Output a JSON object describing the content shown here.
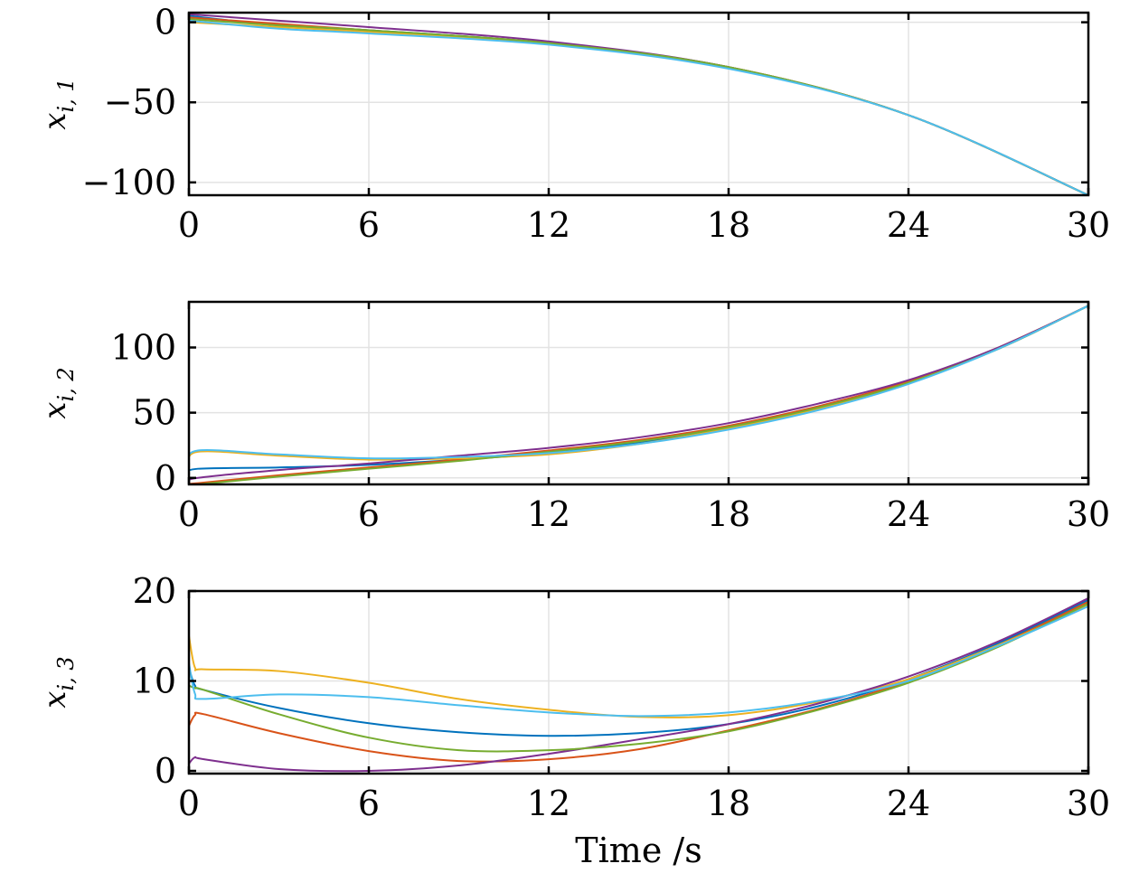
{
  "chart_data": [
    {
      "type": "line",
      "ylabel": "x_{i,1}",
      "ylabel_main": "x",
      "ylabel_sub": "i, 1",
      "xlabel": "",
      "xlim": [
        0,
        30
      ],
      "ylim": [
        -108,
        6
      ],
      "xticks": [
        "0",
        "6",
        "12",
        "18",
        "24",
        "30"
      ],
      "xtick_values": [
        0,
        6,
        12,
        18,
        24,
        30
      ],
      "yticks": [
        "0",
        "−50",
        "−100"
      ],
      "ytick_values": [
        0,
        -50,
        -100
      ],
      "grid": true,
      "series": [
        {
          "color": "#0072BD",
          "x": [
            0,
            3,
            6,
            12,
            18,
            24,
            30
          ],
          "y": [
            4,
            -2,
            -5,
            -13,
            -28,
            -58,
            -108
          ]
        },
        {
          "color": "#D95319",
          "x": [
            0,
            3,
            6,
            12,
            18,
            24,
            30
          ],
          "y": [
            3,
            -1,
            -5,
            -13,
            -28,
            -58,
            -108
          ]
        },
        {
          "color": "#EDB120",
          "x": [
            0,
            3,
            6,
            12,
            18,
            24,
            30
          ],
          "y": [
            0,
            -3,
            -6,
            -13,
            -28,
            -58,
            -108
          ]
        },
        {
          "color": "#7E2F8E",
          "x": [
            0,
            3,
            6,
            12,
            18,
            24,
            30
          ],
          "y": [
            5,
            1,
            -3,
            -12,
            -28,
            -58,
            -108
          ]
        },
        {
          "color": "#77AC30",
          "x": [
            0,
            3,
            6,
            12,
            18,
            24,
            30
          ],
          "y": [
            2,
            -2,
            -5,
            -13,
            -28,
            -58,
            -108
          ]
        },
        {
          "color": "#4DBEEE",
          "x": [
            0,
            3,
            6,
            12,
            18,
            24,
            30
          ],
          "y": [
            1,
            -4,
            -7,
            -14,
            -29,
            -58,
            -108
          ]
        }
      ]
    },
    {
      "type": "line",
      "ylabel": "x_{i,2}",
      "ylabel_main": "x",
      "ylabel_sub": "i, 2",
      "xlabel": "",
      "xlim": [
        0,
        30
      ],
      "ylim": [
        -5,
        135
      ],
      "xticks": [
        "0",
        "6",
        "12",
        "18",
        "24",
        "30"
      ],
      "xtick_values": [
        0,
        6,
        12,
        18,
        24,
        30
      ],
      "yticks": [
        "0",
        "50",
        "100"
      ],
      "ytick_values": [
        0,
        50,
        100
      ],
      "grid": true,
      "series": [
        {
          "color": "#0072BD",
          "x": [
            0,
            0.3,
            3,
            6,
            9,
            12,
            15,
            18,
            21,
            24,
            27,
            30
          ],
          "y": [
            3,
            7,
            8,
            10,
            14,
            19,
            27,
            38,
            53,
            73,
            99,
            132
          ]
        },
        {
          "color": "#D95319",
          "x": [
            0,
            0.3,
            3,
            6,
            9,
            12,
            15,
            18,
            21,
            24,
            27,
            30
          ],
          "y": [
            -4,
            -4,
            2,
            8,
            14,
            21,
            29,
            40,
            55,
            74,
            100,
            132
          ]
        },
        {
          "color": "#EDB120",
          "x": [
            0,
            0.3,
            3,
            6,
            9,
            12,
            15,
            18,
            21,
            24,
            27,
            30
          ],
          "y": [
            8,
            20,
            17,
            14,
            15,
            18,
            26,
            38,
            53,
            73,
            99,
            132
          ]
        },
        {
          "color": "#7E2F8E",
          "x": [
            0,
            0.3,
            3,
            6,
            9,
            12,
            15,
            18,
            21,
            24,
            27,
            30
          ],
          "y": [
            -3,
            0,
            6,
            11,
            17,
            23,
            31,
            42,
            57,
            75,
            100,
            132
          ]
        },
        {
          "color": "#77AC30",
          "x": [
            0,
            0.3,
            3,
            6,
            9,
            12,
            15,
            18,
            21,
            24,
            27,
            30
          ],
          "y": [
            -5,
            -5,
            1,
            7,
            13,
            20,
            28,
            39,
            54,
            73,
            99,
            132
          ]
        },
        {
          "color": "#4DBEEE",
          "x": [
            0,
            0.3,
            3,
            6,
            9,
            12,
            15,
            18,
            21,
            24,
            27,
            30
          ],
          "y": [
            10,
            21,
            18,
            15,
            16,
            19,
            26,
            37,
            52,
            72,
            99,
            132
          ]
        }
      ]
    },
    {
      "type": "line",
      "ylabel": "x_{i,3}",
      "ylabel_main": "x",
      "ylabel_sub": "i, 3",
      "xlabel": "Time /s",
      "xlim": [
        0,
        30
      ],
      "ylim": [
        -0.3,
        20
      ],
      "xticks": [
        "0",
        "6",
        "12",
        "18",
        "24",
        "30"
      ],
      "xtick_values": [
        0,
        6,
        12,
        18,
        24,
        30
      ],
      "yticks": [
        "0",
        "10",
        "20"
      ],
      "ytick_values": [
        0,
        10,
        20
      ],
      "grid": true,
      "series": [
        {
          "color": "#0072BD",
          "x": [
            0,
            0.2,
            0.5,
            3,
            6,
            9,
            12,
            15,
            18,
            21,
            24,
            27,
            30
          ],
          "y": [
            11.5,
            9.5,
            9.0,
            7.0,
            5.3,
            4.3,
            3.9,
            4.2,
            5.2,
            7.2,
            10.2,
            14.2,
            19.0
          ]
        },
        {
          "color": "#D95319",
          "x": [
            0,
            0.2,
            0.5,
            3,
            6,
            9,
            12,
            15,
            18,
            21,
            24,
            27,
            30
          ],
          "y": [
            5.0,
            6.2,
            6.3,
            4.2,
            2.2,
            1.1,
            1.3,
            2.4,
            4.5,
            6.9,
            10.0,
            14.0,
            18.8
          ]
        },
        {
          "color": "#EDB120",
          "x": [
            0,
            0.2,
            0.5,
            3,
            6,
            9,
            12,
            15,
            18,
            21,
            24,
            27,
            30
          ],
          "y": [
            15.0,
            11.5,
            11.3,
            11.1,
            9.8,
            8.0,
            6.8,
            6.0,
            6.2,
            7.7,
            10.2,
            14.0,
            18.4
          ]
        },
        {
          "color": "#7E2F8E",
          "x": [
            0,
            0.2,
            0.5,
            3,
            6,
            9,
            12,
            15,
            18,
            21,
            24,
            27,
            30
          ],
          "y": [
            0.8,
            1.5,
            1.3,
            0.2,
            0.0,
            0.6,
            1.9,
            3.5,
            5.2,
            7.5,
            10.5,
            14.4,
            19.2
          ]
        },
        {
          "color": "#77AC30",
          "x": [
            0,
            0.2,
            0.5,
            3,
            6,
            9,
            12,
            15,
            18,
            21,
            24,
            27,
            30
          ],
          "y": [
            9.5,
            9.2,
            9.0,
            6.3,
            3.7,
            2.3,
            2.3,
            3.0,
            4.4,
            6.8,
            9.8,
            13.8,
            18.6
          ]
        },
        {
          "color": "#4DBEEE",
          "x": [
            0,
            0.2,
            0.5,
            3,
            6,
            9,
            12,
            15,
            18,
            21,
            24,
            27,
            30
          ],
          "y": [
            12.0,
            8.6,
            8.0,
            8.5,
            8.2,
            7.3,
            6.5,
            6.1,
            6.5,
            7.8,
            10.0,
            13.9,
            18.3
          ]
        }
      ]
    }
  ]
}
